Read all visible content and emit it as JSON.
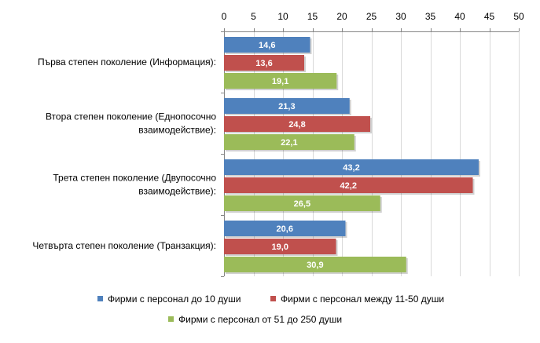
{
  "chart_data": {
    "type": "bar",
    "orientation": "horizontal",
    "categories": [
      "Първа степен поколение (Информация):",
      "Втора степен поколение (Еднопосочно взаимодействие):",
      "Трета степен поколение (Двупосочно взаимодействие):",
      "Четвърта степен поколение (Транзакция):"
    ],
    "category_lines": [
      [
        "Първа степен поколение (Информация):"
      ],
      [
        "Втора степен поколение (Еднопосочно",
        "взаимодействие):"
      ],
      [
        "Трета степен поколение (Двупосочно",
        "взаимодействие):"
      ],
      [
        "Четвърта степен поколение (Транзакция):"
      ]
    ],
    "series": [
      {
        "name": "Фирми с персонал до 10 души",
        "color": "#4f81bd",
        "values": [
          14.6,
          21.3,
          43.2,
          20.6
        ],
        "labels": [
          "14,6",
          "21,3",
          "43,2",
          "20,6"
        ]
      },
      {
        "name": "Фирми с персонал между 11-50 души",
        "color": "#c0504d",
        "values": [
          13.6,
          24.8,
          42.2,
          19.0
        ],
        "labels": [
          "13,6",
          "24,8",
          "42,2",
          "19,0"
        ]
      },
      {
        "name": "Фирми с персонал от 51 до 250 души",
        "color": "#9bbb59",
        "values": [
          19.1,
          22.1,
          26.5,
          30.9
        ],
        "labels": [
          "19,1",
          "22,1",
          "26,5",
          "30,9"
        ]
      }
    ],
    "xlim": [
      0,
      50
    ],
    "x_ticks": [
      0,
      5,
      10,
      15,
      20,
      25,
      30,
      35,
      40,
      45,
      50
    ],
    "x_axis_position": "top",
    "grid": true,
    "legend_position": "bottom",
    "title": "",
    "xlabel": "",
    "ylabel": ""
  }
}
